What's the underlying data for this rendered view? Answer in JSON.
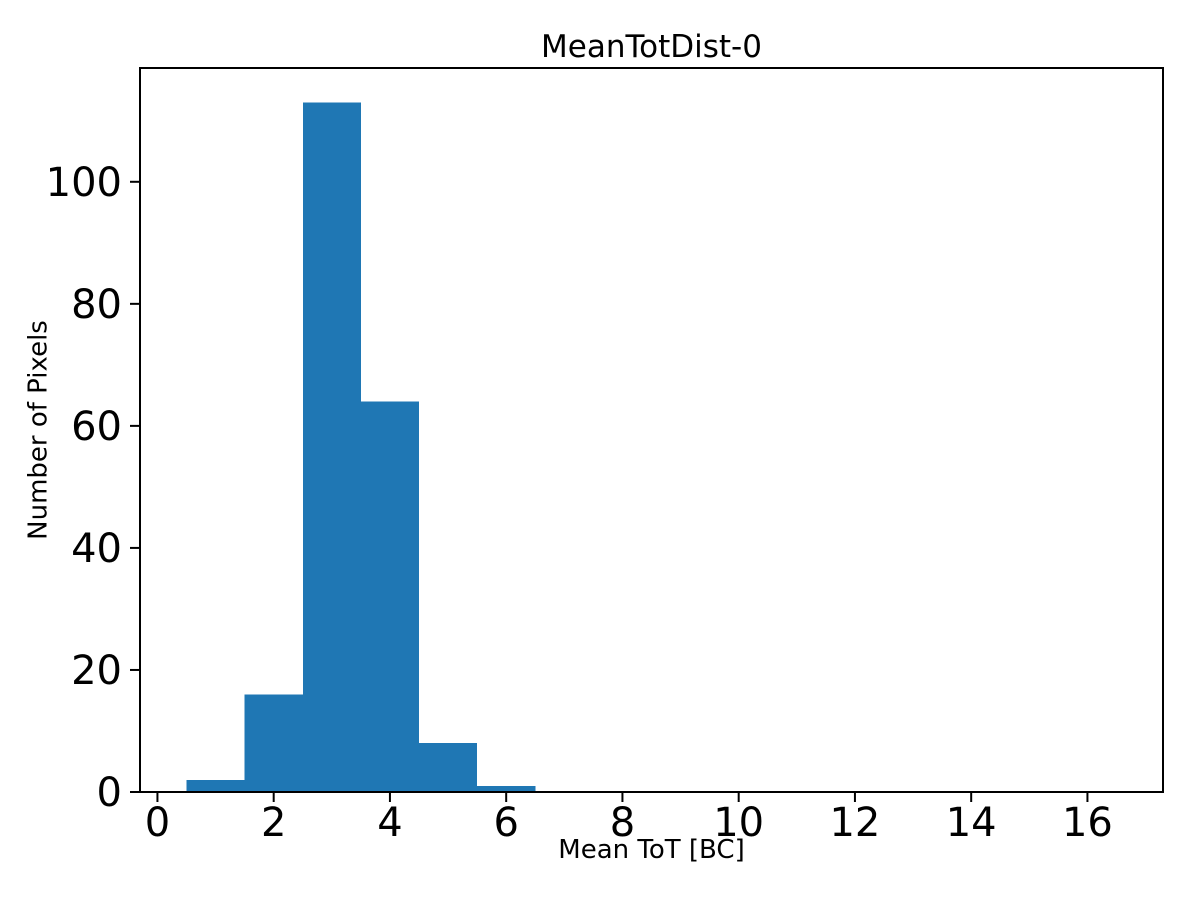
{
  "chart_data": {
    "type": "bar",
    "subtype": "histogram",
    "title": "MeanTotDist-0",
    "xlabel": "Mean ToT [BC]",
    "ylabel": "Number of Pixels",
    "bin_edges": [
      0.5,
      1.5,
      2.5,
      3.5,
      4.5,
      5.5,
      6.5,
      7.5,
      8.5,
      9.5,
      10.5,
      11.5,
      12.5,
      13.5,
      14.5,
      15.5,
      16.5
    ],
    "counts": [
      2,
      16,
      113,
      64,
      8,
      1,
      0,
      0,
      0,
      0,
      0,
      0,
      0,
      0,
      0,
      0
    ],
    "xlim": [
      -0.3,
      17.3
    ],
    "ylim": [
      0,
      118.65
    ],
    "xticks": [
      0,
      2,
      4,
      6,
      8,
      10,
      12,
      14,
      16
    ],
    "xtick_labels": [
      "0",
      "2",
      "4",
      "6",
      "8",
      "10",
      "12",
      "14",
      "16"
    ],
    "yticks": [
      0,
      20,
      40,
      60,
      80,
      100
    ],
    "ytick_labels": [
      "0",
      "20",
      "40",
      "60",
      "80",
      "100"
    ],
    "grid": false,
    "legend": null,
    "bar_color": "#1f77b4",
    "axis_color": "#000000",
    "background_color": "#ffffff"
  }
}
